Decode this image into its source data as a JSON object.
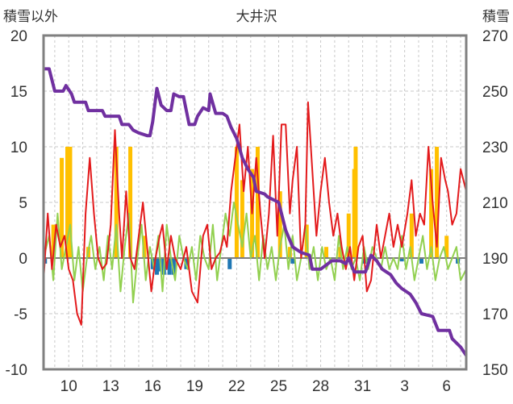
{
  "chart_data": {
    "type": "line",
    "title": "大井沢",
    "ylabel_left": "積雪以外",
    "ylabel_right": "積雪",
    "xlabel": "",
    "ylim_left": [
      -10,
      20
    ],
    "ylim_right": [
      150,
      270
    ],
    "yticks_left": [
      "20",
      "15",
      "10",
      "5",
      "0",
      "-5",
      "-10"
    ],
    "yticks_right": [
      "270",
      "250",
      "230",
      "210",
      "190",
      "170",
      "150"
    ],
    "xticks": [
      "10",
      "13",
      "16",
      "19",
      "22",
      "25",
      "28",
      "31",
      "3",
      "6"
    ],
    "xtick_values": [
      10,
      13,
      16,
      19,
      22,
      25,
      28,
      31,
      34,
      37
    ],
    "xlim": [
      8.2,
      38.4
    ],
    "grid": "dashed",
    "series": [
      {
        "kind": "snow_depth",
        "color": "#7030a0",
        "axis": "right",
        "points": [
          [
            8.2,
            258
          ],
          [
            8.6,
            258
          ],
          [
            9.0,
            250
          ],
          [
            9.6,
            250
          ],
          [
            9.8,
            252
          ],
          [
            10.2,
            249
          ],
          [
            10.4,
            246
          ],
          [
            11.2,
            246
          ],
          [
            11.4,
            243
          ],
          [
            12.4,
            243
          ],
          [
            12.6,
            241
          ],
          [
            13.6,
            241
          ],
          [
            13.8,
            238
          ],
          [
            14.3,
            238
          ],
          [
            14.6,
            236
          ],
          [
            15.0,
            235
          ],
          [
            15.6,
            234
          ],
          [
            15.8,
            234
          ],
          [
            16.0,
            239
          ],
          [
            16.3,
            251
          ],
          [
            16.6,
            245
          ],
          [
            17.0,
            243
          ],
          [
            17.3,
            243
          ],
          [
            17.5,
            249
          ],
          [
            17.9,
            248
          ],
          [
            18.2,
            248
          ],
          [
            18.6,
            238
          ],
          [
            19.0,
            238
          ],
          [
            19.2,
            241
          ],
          [
            19.6,
            244
          ],
          [
            20.0,
            243
          ],
          [
            20.1,
            249
          ],
          [
            20.5,
            242
          ],
          [
            21.0,
            242
          ],
          [
            21.3,
            241
          ],
          [
            21.6,
            237
          ],
          [
            22.0,
            233
          ],
          [
            22.4,
            226
          ],
          [
            22.8,
            222
          ],
          [
            23.2,
            219
          ],
          [
            23.4,
            214
          ],
          [
            24.0,
            213
          ],
          [
            24.2,
            212
          ],
          [
            24.6,
            211
          ],
          [
            25.0,
            210
          ],
          [
            25.5,
            200
          ],
          [
            26.0,
            194
          ],
          [
            26.6,
            192
          ],
          [
            27.2,
            191
          ],
          [
            27.4,
            186
          ],
          [
            28.0,
            186
          ],
          [
            28.8,
            189
          ],
          [
            29.4,
            189
          ],
          [
            29.8,
            188
          ],
          [
            30.0,
            190
          ],
          [
            30.4,
            185
          ],
          [
            31.2,
            185
          ],
          [
            31.6,
            191
          ],
          [
            32.0,
            189
          ],
          [
            32.4,
            186
          ],
          [
            33.0,
            184
          ],
          [
            33.4,
            181
          ],
          [
            33.8,
            179
          ],
          [
            34.4,
            177
          ],
          [
            34.8,
            174
          ],
          [
            35.2,
            170
          ],
          [
            36.0,
            169
          ],
          [
            36.4,
            164
          ],
          [
            37.2,
            164
          ],
          [
            37.4,
            161
          ],
          [
            38.0,
            158
          ],
          [
            38.4,
            155
          ]
        ]
      },
      {
        "kind": "red_line",
        "color": "#e31a1c",
        "axis": "left",
        "points": [
          [
            8.2,
            -2
          ],
          [
            8.5,
            4
          ],
          [
            8.8,
            -1
          ],
          [
            9.1,
            3
          ],
          [
            9.4,
            1
          ],
          [
            9.7,
            2
          ],
          [
            10.0,
            -1
          ],
          [
            10.3,
            -2
          ],
          [
            10.6,
            -5
          ],
          [
            10.9,
            -6
          ],
          [
            11.2,
            4
          ],
          [
            11.5,
            9
          ],
          [
            11.8,
            4
          ],
          [
            12.1,
            0
          ],
          [
            12.4,
            -1
          ],
          [
            12.7,
            -0.5
          ],
          [
            13.0,
            3
          ],
          [
            13.3,
            11.5
          ],
          [
            13.6,
            4
          ],
          [
            13.8,
            0
          ],
          [
            14.1,
            6
          ],
          [
            14.4,
            0
          ],
          [
            14.7,
            -1
          ],
          [
            15.0,
            2
          ],
          [
            15.3,
            5
          ],
          [
            15.6,
            1
          ],
          [
            15.9,
            -3
          ],
          [
            16.2,
            0
          ],
          [
            16.5,
            2
          ],
          [
            16.7,
            3
          ],
          [
            17.0,
            -1
          ],
          [
            17.3,
            2
          ],
          [
            17.6,
            0
          ],
          [
            18.0,
            -1
          ],
          [
            18.4,
            1
          ],
          [
            18.8,
            -3
          ],
          [
            19.2,
            -4
          ],
          [
            19.6,
            2
          ],
          [
            19.9,
            3
          ],
          [
            20.2,
            -1
          ],
          [
            20.5,
            0
          ],
          [
            20.8,
            0.5
          ],
          [
            21.1,
            2
          ],
          [
            21.3,
            1
          ],
          [
            21.6,
            6
          ],
          [
            21.9,
            9
          ],
          [
            22.2,
            12
          ],
          [
            22.5,
            6
          ],
          [
            22.8,
            10
          ],
          [
            23.1,
            4
          ],
          [
            23.4,
            9
          ],
          [
            23.7,
            4
          ],
          [
            24.0,
            0
          ],
          [
            24.3,
            4
          ],
          [
            24.6,
            11
          ],
          [
            24.9,
            2
          ],
          [
            25.2,
            12
          ],
          [
            25.5,
            12
          ],
          [
            25.8,
            4
          ],
          [
            26.0,
            7
          ],
          [
            26.3,
            10
          ],
          [
            26.6,
            0
          ],
          [
            26.9,
            3
          ],
          [
            27.1,
            14
          ],
          [
            27.4,
            8
          ],
          [
            27.7,
            2
          ],
          [
            28.0,
            6
          ],
          [
            28.3,
            9
          ],
          [
            28.6,
            5
          ],
          [
            28.9,
            2
          ],
          [
            29.2,
            4
          ],
          [
            29.5,
            1
          ],
          [
            29.8,
            -1
          ],
          [
            30.1,
            1
          ],
          [
            30.4,
            -2
          ],
          [
            30.7,
            1
          ],
          [
            31.0,
            2
          ],
          [
            31.3,
            -3
          ],
          [
            31.6,
            -2
          ],
          [
            32.0,
            3
          ],
          [
            32.3,
            0
          ],
          [
            32.6,
            2
          ],
          [
            32.9,
            4
          ],
          [
            33.2,
            1
          ],
          [
            33.5,
            3
          ],
          [
            33.8,
            1
          ],
          [
            34.2,
            4
          ],
          [
            34.5,
            7
          ],
          [
            34.8,
            2
          ],
          [
            35.1,
            4
          ],
          [
            35.4,
            3
          ],
          [
            35.7,
            10
          ],
          [
            36.0,
            5
          ],
          [
            36.3,
            1
          ],
          [
            36.6,
            9
          ],
          [
            36.9,
            7
          ],
          [
            37.1,
            6
          ],
          [
            37.4,
            3
          ],
          [
            37.7,
            4
          ],
          [
            38.0,
            8
          ],
          [
            38.4,
            6
          ]
        ]
      },
      {
        "kind": "green_line",
        "color": "#92d050",
        "axis": "left",
        "points": [
          [
            8.2,
            0
          ],
          [
            8.6,
            2
          ],
          [
            8.9,
            -2
          ],
          [
            9.2,
            4
          ],
          [
            9.5,
            -1
          ],
          [
            9.8,
            1
          ],
          [
            10.1,
            3
          ],
          [
            10.4,
            -2
          ],
          [
            10.7,
            1
          ],
          [
            11.0,
            -3
          ],
          [
            11.3,
            0
          ],
          [
            11.6,
            2
          ],
          [
            11.9,
            -1
          ],
          [
            12.2,
            1
          ],
          [
            12.5,
            -2
          ],
          [
            12.8,
            2
          ],
          [
            13.1,
            -1
          ],
          [
            13.4,
            3
          ],
          [
            13.7,
            -3
          ],
          [
            14.0,
            1
          ],
          [
            14.3,
            4
          ],
          [
            14.6,
            -4
          ],
          [
            14.9,
            0
          ],
          [
            15.2,
            3
          ],
          [
            15.5,
            -2
          ],
          [
            15.8,
            1
          ],
          [
            16.1,
            -1
          ],
          [
            16.4,
            2
          ],
          [
            16.7,
            -3
          ],
          [
            17.0,
            3
          ],
          [
            17.3,
            0
          ],
          [
            17.6,
            -2
          ],
          [
            17.9,
            2
          ],
          [
            18.2,
            0
          ],
          [
            18.5,
            -1
          ],
          [
            18.8,
            1
          ],
          [
            19.1,
            -2
          ],
          [
            19.4,
            2
          ],
          [
            19.7,
            0
          ],
          [
            20.0,
            -1
          ],
          [
            20.3,
            3
          ],
          [
            20.6,
            -2
          ],
          [
            20.9,
            1
          ],
          [
            21.2,
            4
          ],
          [
            21.5,
            2
          ],
          [
            21.8,
            5
          ],
          [
            22.1,
            3
          ],
          [
            22.4,
            1
          ],
          [
            22.7,
            4
          ],
          [
            23.0,
            0
          ],
          [
            23.3,
            2
          ],
          [
            23.6,
            -2
          ],
          [
            23.9,
            2
          ],
          [
            24.2,
            -1
          ],
          [
            24.5,
            1
          ],
          [
            24.8,
            -2
          ],
          [
            25.1,
            1
          ],
          [
            25.4,
            3
          ],
          [
            25.7,
            -1
          ],
          [
            26.0,
            2
          ],
          [
            26.3,
            -2
          ],
          [
            26.6,
            0
          ],
          [
            26.9,
            3
          ],
          [
            27.2,
            -1
          ],
          [
            27.5,
            1
          ],
          [
            27.8,
            -2
          ],
          [
            28.1,
            1
          ],
          [
            28.4,
            -1
          ],
          [
            28.7,
            0
          ],
          [
            29.0,
            -2
          ],
          [
            29.3,
            2
          ],
          [
            29.6,
            -1
          ],
          [
            29.9,
            1
          ],
          [
            30.2,
            -1
          ],
          [
            30.5,
            0
          ],
          [
            30.8,
            -2
          ],
          [
            31.1,
            1
          ],
          [
            31.4,
            -1
          ],
          [
            31.7,
            1
          ],
          [
            32.0,
            0
          ],
          [
            32.3,
            -1
          ],
          [
            32.6,
            1
          ],
          [
            32.9,
            -1
          ],
          [
            33.2,
            0
          ],
          [
            33.5,
            -1
          ],
          [
            33.8,
            2
          ],
          [
            34.1,
            -1
          ],
          [
            34.4,
            1
          ],
          [
            34.7,
            -2
          ],
          [
            35.0,
            0
          ],
          [
            35.3,
            2
          ],
          [
            35.6,
            -1
          ],
          [
            35.9,
            1
          ],
          [
            36.2,
            -2
          ],
          [
            36.5,
            0
          ],
          [
            36.8,
            1
          ],
          [
            37.1,
            -1
          ],
          [
            37.4,
            0
          ],
          [
            37.7,
            1
          ],
          [
            38.0,
            -2
          ],
          [
            38.4,
            -1
          ]
        ]
      },
      {
        "kind": "orange_bars",
        "color": "#ffc000",
        "axis": "left",
        "points": [
          [
            8.9,
            3
          ],
          [
            9.5,
            9
          ],
          [
            9.9,
            10
          ],
          [
            10.1,
            10
          ],
          [
            11.4,
            1
          ],
          [
            13.4,
            10
          ],
          [
            14.4,
            10
          ],
          [
            15.4,
            2
          ],
          [
            22.0,
            10
          ],
          [
            22.4,
            7
          ],
          [
            23.1,
            8
          ],
          [
            23.5,
            10
          ],
          [
            25.1,
            6
          ],
          [
            25.8,
            1
          ],
          [
            27.0,
            3
          ],
          [
            28.4,
            1
          ],
          [
            29.4,
            1
          ],
          [
            30.0,
            4
          ],
          [
            30.4,
            8
          ],
          [
            30.5,
            10
          ],
          [
            34.5,
            4
          ],
          [
            35.9,
            8
          ],
          [
            36.3,
            10
          ],
          [
            37.0,
            2
          ]
        ]
      },
      {
        "kind": "blue_bars",
        "color": "#1f77b4",
        "axis": "left",
        "points": [
          [
            8.3,
            -0.5
          ],
          [
            16.0,
            -1
          ],
          [
            16.3,
            -1.5
          ],
          [
            16.5,
            -1.2
          ],
          [
            16.8,
            -1.5
          ],
          [
            17.2,
            -1.5
          ],
          [
            17.5,
            -1.5
          ],
          [
            18.4,
            -1
          ],
          [
            21.5,
            -1
          ],
          [
            26.0,
            -0.5
          ],
          [
            31.1,
            -0.5
          ],
          [
            31.4,
            -0.5
          ],
          [
            33.8,
            -0.3
          ],
          [
            35.2,
            -0.5
          ],
          [
            37.8,
            -0.5
          ]
        ]
      }
    ]
  }
}
